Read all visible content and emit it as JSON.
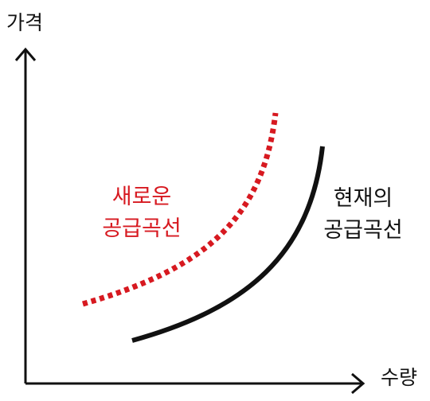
{
  "y_axis_label": "가격",
  "x_axis_label": "수량",
  "curves": {
    "new": {
      "label_line1": "새로운",
      "label_line2": "공급곡선",
      "color": "#d71920",
      "style": "dotted"
    },
    "current": {
      "label_line1": "현재의",
      "label_line2": "공급곡선",
      "color": "#111111",
      "style": "solid"
    }
  },
  "axis_color": "#111111"
}
